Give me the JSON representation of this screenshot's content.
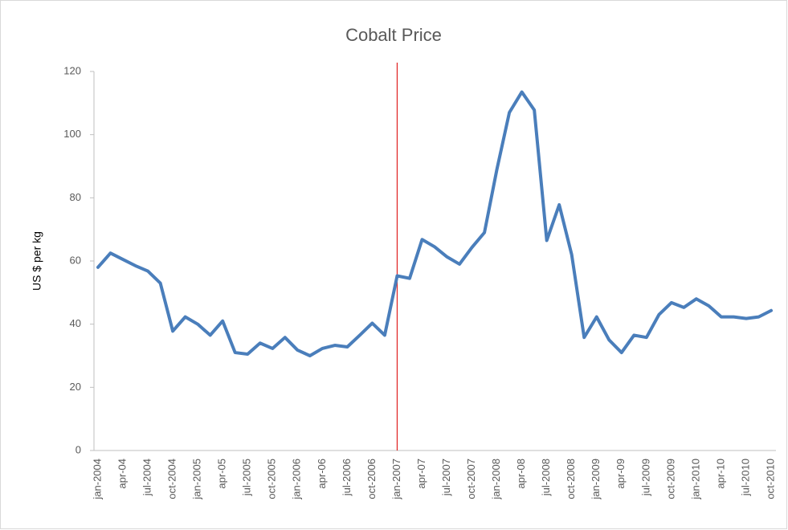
{
  "chart_data": {
    "type": "line",
    "title": "Cobalt Price",
    "y_label": "US $ per kg",
    "categories": [
      "jan-2004",
      null,
      "apr-04",
      null,
      "jul-2004",
      null,
      "oct-2004",
      null,
      "jan-2005",
      null,
      "apr-05",
      null,
      "jul-2005",
      null,
      "oct-2005",
      null,
      "jan-2006",
      null,
      "apr-06",
      null,
      "jul-2006",
      null,
      "oct-2006",
      null,
      "jan-2007",
      null,
      "apr-07",
      null,
      "jul-2007",
      null,
      "oct-2007",
      null,
      "jan-2008",
      null,
      "apr-08",
      null,
      "jul-2008",
      null,
      "oct-2008",
      null,
      "jan-2009",
      null,
      "apr-09",
      null,
      "jul-2009",
      null,
      "oct-2009",
      null,
      "jan-2010",
      null,
      "apr-10",
      null,
      "jul-2010",
      null,
      "oct-2010"
    ],
    "series": [
      {
        "name": "Cobalt",
        "color": "#4a7ebb",
        "values": [
          58,
          62.5,
          60.5,
          58.5,
          56.8,
          53,
          37.8,
          42.3,
          40,
          36.5,
          41,
          31,
          30.5,
          34,
          32.3,
          35.8,
          31.8,
          30,
          32.3,
          33.3,
          32.8,
          36.5,
          40.3,
          36.5,
          55.3,
          54.5,
          66.8,
          64.5,
          61.3,
          59,
          64.3,
          69,
          89,
          107,
          113.5,
          107.8,
          66.5,
          77.8,
          62,
          35.8,
          42.3,
          35,
          31,
          36.5,
          35.8,
          43,
          46.8,
          45.3,
          48,
          45.8,
          42.3,
          42.3,
          41.8,
          42.3,
          44.3
        ]
      }
    ],
    "ylim": [
      0,
      120
    ],
    "yticks": [
      0,
      20,
      40,
      60,
      80,
      100,
      120
    ],
    "grid": false,
    "vline": {
      "at": "jan-2007",
      "color": "#e02020"
    }
  }
}
